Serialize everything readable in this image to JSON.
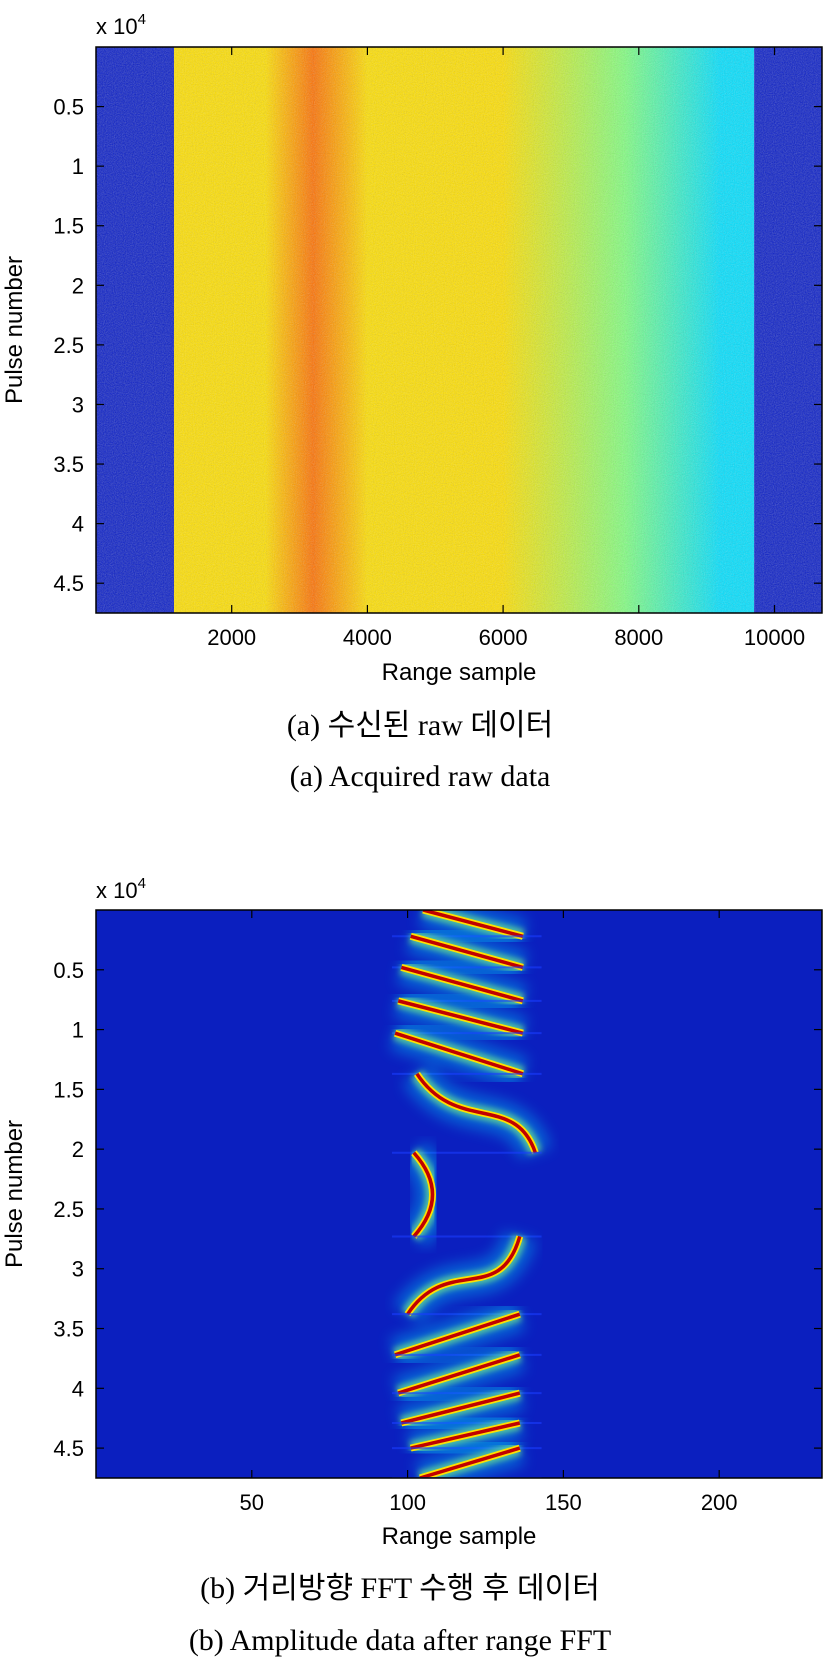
{
  "chart_data": [
    {
      "type": "heatmap",
      "panel": "a",
      "xlabel": "Range sample",
      "ylabel": "Pulse number",
      "y_exponent_label": "x 10",
      "y_exponent_power": "4",
      "xlim": [
        0,
        10700
      ],
      "ylim": [
        47500,
        0
      ],
      "xticks": [
        2000,
        4000,
        6000,
        8000,
        10000
      ],
      "xtick_labels": [
        "2000",
        "4000",
        "6000",
        "8000",
        "10000"
      ],
      "yticks": [
        5000,
        10000,
        15000,
        20000,
        25000,
        30000,
        35000,
        40000,
        45000
      ],
      "ytick_labels": [
        "0.5",
        "1",
        "1.5",
        "2",
        "2.5",
        "3",
        "3.5",
        "4",
        "4.5"
      ],
      "regions": [
        {
          "x_start": 0,
          "x_end": 1150,
          "level": "low"
        },
        {
          "x_start": 1150,
          "x_end": 9700,
          "level": "high"
        },
        {
          "x_start": 9700,
          "x_end": 10700,
          "level": "low"
        }
      ],
      "peak_x": 3200,
      "colors": [
        "#00008f",
        "#0050ff",
        "#00e0ff",
        "#80ff80",
        "#ffe000",
        "#ff7000",
        "#c00000"
      ],
      "caption_korean": "(a) 수신된 raw 데이터",
      "caption_english": "(a) Acquired raw data"
    },
    {
      "type": "heatmap",
      "panel": "b",
      "xlabel": "Range sample",
      "ylabel": "Pulse number",
      "y_exponent_label": "x 10",
      "y_exponent_power": "4",
      "xlim": [
        0,
        233
      ],
      "ylim": [
        47500,
        0
      ],
      "xticks": [
        50,
        100,
        150,
        200
      ],
      "xtick_labels": [
        "50",
        "100",
        "150",
        "200"
      ],
      "yticks": [
        5000,
        10000,
        15000,
        20000,
        25000,
        30000,
        35000,
        40000,
        45000
      ],
      "ytick_labels": [
        "0.5",
        "1",
        "1.5",
        "2",
        "2.5",
        "3",
        "3.5",
        "4",
        "4.5"
      ],
      "segments": [
        {
          "y_start": 0,
          "y_end": 2200,
          "x_top": 105,
          "x_bottom": 137,
          "shape": "line"
        },
        {
          "y_start": 2200,
          "y_end": 4800,
          "x_top": 101,
          "x_bottom": 137,
          "shape": "line"
        },
        {
          "y_start": 4800,
          "y_end": 7600,
          "x_top": 98,
          "x_bottom": 137,
          "shape": "line"
        },
        {
          "y_start": 7600,
          "y_end": 10300,
          "x_top": 97,
          "x_bottom": 137,
          "shape": "line"
        },
        {
          "y_start": 10300,
          "y_end": 13700,
          "x_top": 96,
          "x_bottom": 137,
          "shape": "line"
        },
        {
          "y_start": 13700,
          "y_end": 20300,
          "x_top": 103,
          "x_bottom": 141,
          "shape": "curve-down"
        },
        {
          "y_start": 20300,
          "y_end": 27300,
          "x_top": 102,
          "x_bottom": 102,
          "shape": "arc",
          "x_mid": 108
        },
        {
          "y_start": 27300,
          "y_end": 33800,
          "x_top": 136,
          "x_bottom": 100,
          "shape": "curve-up"
        },
        {
          "y_start": 33800,
          "y_end": 37200,
          "x_top": 136,
          "x_bottom": 96,
          "shape": "line"
        },
        {
          "y_start": 37200,
          "y_end": 40400,
          "x_top": 136,
          "x_bottom": 97,
          "shape": "line"
        },
        {
          "y_start": 40400,
          "y_end": 42900,
          "x_top": 136,
          "x_bottom": 98,
          "shape": "line"
        },
        {
          "y_start": 42900,
          "y_end": 45000,
          "x_top": 136,
          "x_bottom": 101,
          "shape": "line"
        },
        {
          "y_start": 45000,
          "y_end": 47500,
          "x_top": 136,
          "x_bottom": 104,
          "shape": "line"
        }
      ],
      "colors": [
        "#00008f",
        "#0050ff",
        "#00e0ff",
        "#80ff80",
        "#ffe000",
        "#ff7000",
        "#c00000"
      ],
      "caption_korean": "(b) 거리방향 FFT 수행 후 데이터",
      "caption_english": "(b) Amplitude data after range FFT"
    }
  ]
}
